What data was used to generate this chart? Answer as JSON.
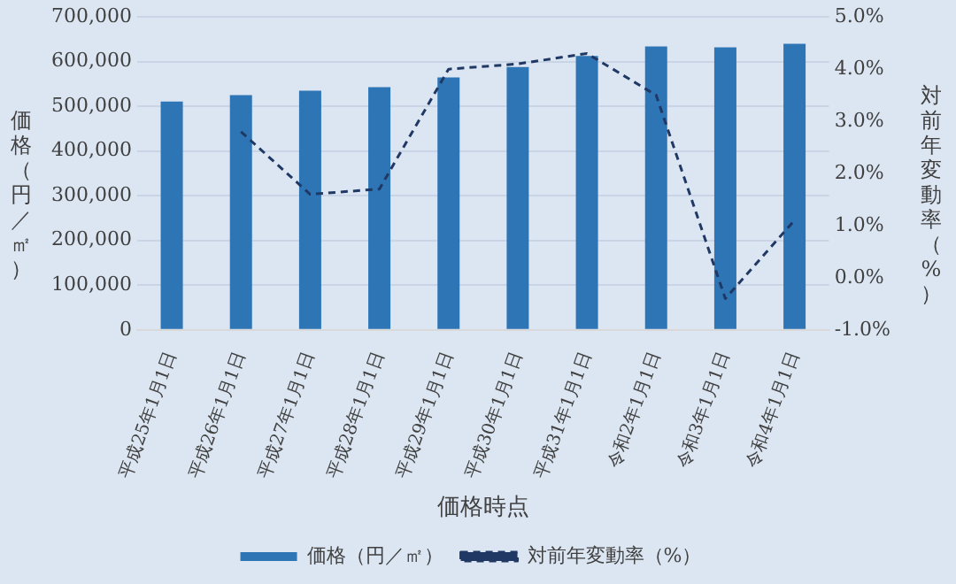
{
  "chart_data": {
    "type": "bar",
    "xlabel": "価格時点",
    "ylabel": "価格（円／㎡）",
    "y2label": "対前年変動率（%）",
    "categories": [
      "平成25年1月1日",
      "平成26年1月1日",
      "平成27年1月1日",
      "平成28年1月1日",
      "平成29年1月1日",
      "平成30年1月1日",
      "平成31年1月1日",
      "令和2年1月1日",
      "令和3年1月1日",
      "令和4年1月1日"
    ],
    "series": [
      {
        "name": "価格（円／㎡）",
        "color": "#2e75b6",
        "values": [
          511000,
          525000,
          535000,
          543000,
          565000,
          588000,
          613000,
          634000,
          632000,
          640000
        ]
      },
      {
        "name": "対前年変動率（%）",
        "type": "line",
        "axis": "y2",
        "color": "#203864",
        "line_style": "dashed",
        "marker": "none",
        "values": [
          null,
          2.8,
          1.6,
          1.7,
          4.0,
          4.1,
          4.3,
          3.5,
          -0.4,
          1.1
        ]
      }
    ],
    "ylim": [
      0,
      700000
    ],
    "yticks": [
      0,
      {
        "value": 100000,
        "label": "100,000"
      },
      {
        "value": 200000,
        "label": "200,000"
      },
      {
        "value": 300000,
        "label": "300,000"
      },
      {
        "value": 400000,
        "label": "400,000"
      },
      {
        "value": 500000,
        "label": "500,000"
      },
      {
        "value": 600000,
        "label": "600,000"
      },
      {
        "value": 700000,
        "label": "700,000"
      }
    ],
    "y2lim": [
      -1,
      5
    ],
    "y2ticks": [
      {
        "value": -1,
        "label": "-1.0%"
      },
      {
        "value": 0,
        "label": "0.0%"
      },
      {
        "value": 1,
        "label": "1.0%"
      },
      {
        "value": 2,
        "label": "2.0%"
      },
      {
        "value": 3,
        "label": "3.0%"
      },
      {
        "value": 4,
        "label": "4.0%"
      },
      {
        "value": 5,
        "label": "5.0%"
      }
    ],
    "grid": "y",
    "legend": "bottom"
  }
}
